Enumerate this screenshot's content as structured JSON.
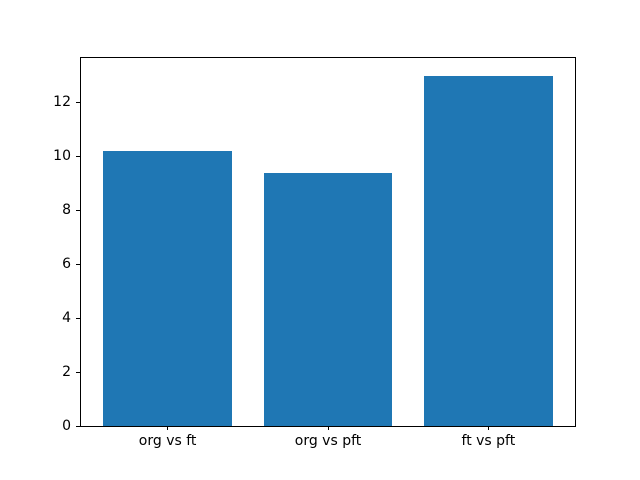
{
  "figure": {
    "background": "#ffffff"
  },
  "chart_data": {
    "type": "bar",
    "categories": [
      "org vs ft",
      "org vs pft",
      "ft vs pft"
    ],
    "values": [
      10.2,
      9.37,
      13.0
    ],
    "title": "",
    "xlabel": "",
    "ylabel": "",
    "yticks": [
      0,
      2,
      4,
      6,
      8,
      10,
      12
    ],
    "ytick_labels": [
      "0",
      "2",
      "4",
      "6",
      "8",
      "10",
      "12"
    ],
    "ylim": [
      0,
      13.65
    ],
    "xlim": [
      -0.54,
      2.54
    ],
    "bar_width": 0.8,
    "bar_color": "#1f77b4",
    "axis_color": "#000000",
    "grid": false,
    "legend": false
  }
}
